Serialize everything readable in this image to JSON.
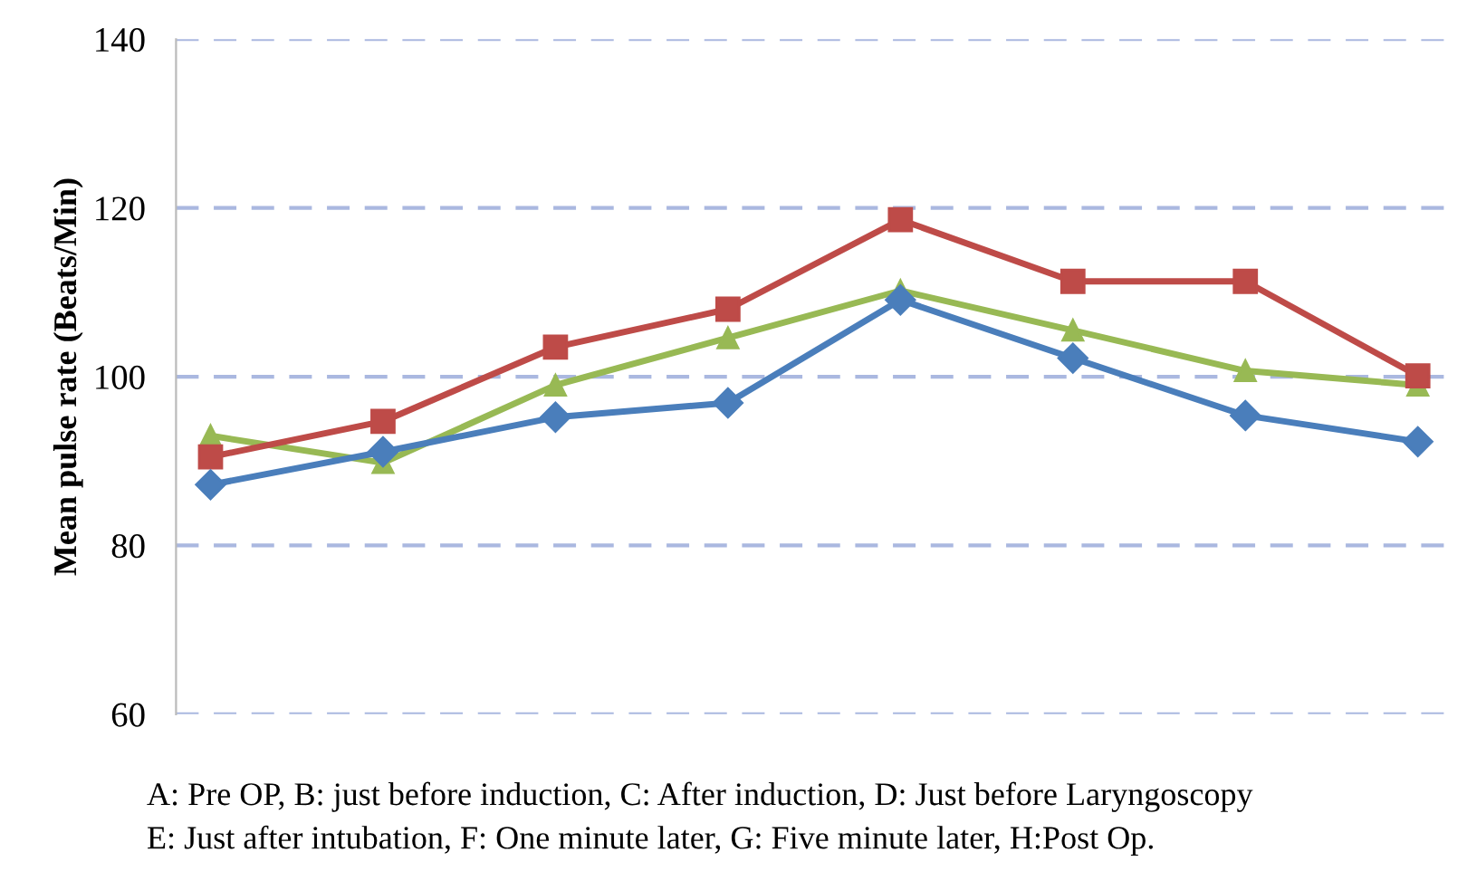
{
  "chart_data": {
    "type": "line",
    "ylabel": "Mean pulse rate (Beats/Min)",
    "categories": [
      null,
      null,
      null,
      null,
      null,
      null,
      null,
      null
    ],
    "series": [
      {
        "color": "#4a7ebb",
        "marker": "diamond",
        "values": [
          87.2,
          91.1,
          95.2,
          96.9,
          109.1,
          102.2,
          95.4,
          92.3
        ]
      },
      {
        "color": "#be4b48",
        "marker": "square",
        "values": [
          90.5,
          94.7,
          103.5,
          108,
          118.6,
          111.3,
          111.3,
          100.1
        ]
      },
      {
        "color": "#98b954",
        "marker": "triangle",
        "values": [
          93,
          89.8,
          99,
          104.6,
          110.2,
          105.5,
          100.7,
          99
        ]
      }
    ],
    "ylim": [
      60,
      140
    ],
    "yticks": [
      60,
      80,
      100,
      120,
      140
    ],
    "grid": "y",
    "tick_labels": "y",
    "line_style": "solid",
    "annotations": [
      "A: Pre OP, B: just before induction, C: After induction, D: Just before Laryngoscopy",
      "E: Just after intubation, F: One minute later, G: Five minute later, H:Post Op."
    ]
  }
}
